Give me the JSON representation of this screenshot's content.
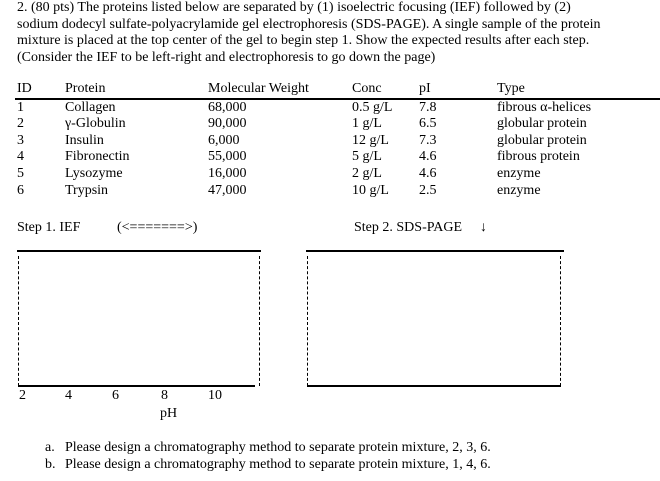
{
  "intro": [
    "2. (80 pts) The proteins listed below are separated by (1) isoelectric focusing (IEF) followed by (2)",
    "sodium dodecyl sulfate-polyacrylamide gel electrophoresis (SDS-PAGE). A single sample of the protein",
    "mixture is placed at the top center of the gel to begin step 1. Show the expected results after each step.",
    "(Consider the IEF to be left-right and electrophoresis to go down the page)"
  ],
  "table": {
    "headers": [
      "ID",
      "Protein",
      "Molecular Weight",
      "Conc",
      "pI",
      "Type"
    ],
    "rows": [
      [
        "1",
        "Collagen",
        "68,000",
        "0.5 g/L",
        "7.8",
        "fibrous α-helices"
      ],
      [
        "2",
        "γ-Globulin",
        "90,000",
        "1 g/L",
        "6.5",
        "globular protein"
      ],
      [
        "3",
        "Insulin",
        "6,000",
        "12 g/L",
        "7.3",
        "globular protein"
      ],
      [
        "4",
        "Fibronectin",
        "55,000",
        "5 g/L",
        "4.6",
        "fibrous protein"
      ],
      [
        "5",
        "Lysozyme",
        "16,000",
        "2 g/L",
        "4.6",
        "enzyme"
      ],
      [
        "6",
        "Trypsin",
        "47,000",
        "10 g/L",
        "2.5",
        "enzyme"
      ]
    ]
  },
  "step1": {
    "label": "Step 1. IEF",
    "arrow": "(<=======>)",
    "ticks": [
      "2",
      "4",
      "6",
      "8",
      "10"
    ],
    "axis_label": "pH"
  },
  "step2": {
    "label": "Step 2. SDS-PAGE",
    "arrow": "↓"
  },
  "questions": [
    {
      "marker": "a.",
      "text": "Please design a chromatography method to separate protein mixture, 2, 3, 6."
    },
    {
      "marker": "b.",
      "text": "Please design a chromatography method to separate protein mixture, 1, 4, 6."
    }
  ]
}
